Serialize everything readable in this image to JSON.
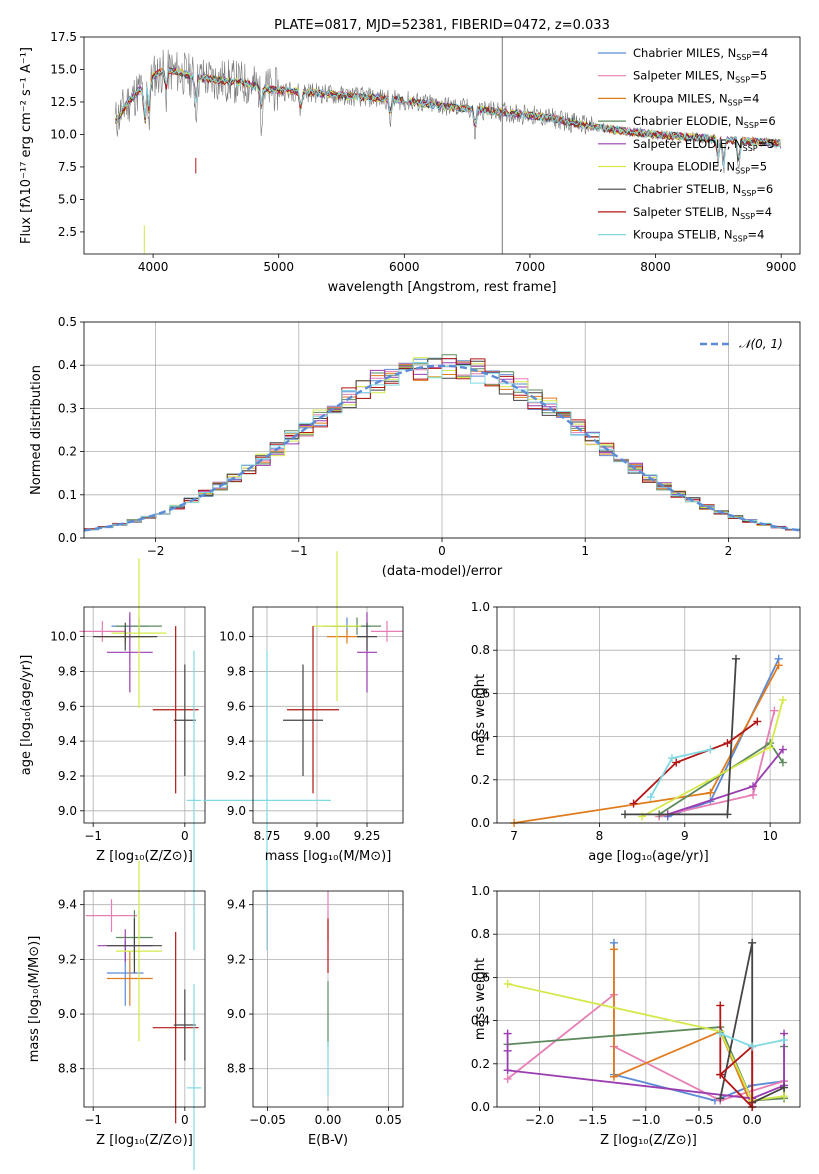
{
  "colors": {
    "chabrier_miles": "#5b8bd6",
    "salpeter_miles": "#e67fb5",
    "kroupa_miles": "#e07b1e",
    "chabrier_elodie": "#5d8a5d",
    "salpeter_elodie": "#9a3db0",
    "kroupa_elodie": "#d4e84a",
    "chabrier_stelib": "#454545",
    "salpeter_stelib": "#b21616",
    "kroupa_stelib": "#7fd9e2"
  },
  "chart_data": [
    {
      "id": "spectrum",
      "type": "line",
      "title": "PLATE=0817, MJD=52381, FIBERID=0472, z=0.033",
      "xlabel": "wavelength [Angstrom, rest frame]",
      "ylabel": "Flux [fλ10⁻¹⁷ erg cm⁻² s⁻¹ A⁻¹]",
      "xlim": [
        3450,
        9150
      ],
      "ylim": [
        0.8,
        17.5
      ],
      "xticks": [
        4000,
        5000,
        6000,
        7000,
        8000,
        9000
      ],
      "yticks": [
        2.5,
        5.0,
        7.5,
        10.0,
        12.5,
        15.0,
        17.5
      ],
      "legend_position": "top-right",
      "legend": [
        {
          "label": "Chabrier MILES, N",
          "sub": "SSP",
          "tail": "=4",
          "color": "#5b8bd6"
        },
        {
          "label": "Salpeter MILES, N",
          "sub": "SSP",
          "tail": "=5",
          "color": "#e67fb5"
        },
        {
          "label": "Kroupa MILES, N",
          "sub": "SSP",
          "tail": "=4",
          "color": "#e07b1e"
        },
        {
          "label": "Chabrier ELODIE, N",
          "sub": "SSP",
          "tail": "=6",
          "color": "#5d8a5d"
        },
        {
          "label": "Salpeter ELODIE, N",
          "sub": "SSP",
          "tail": "=5",
          "color": "#9a3db0"
        },
        {
          "label": "Kroupa ELODIE, N",
          "sub": "SSP",
          "tail": "=5",
          "color": "#d4e84a"
        },
        {
          "label": "Chabrier STELIB, N",
          "sub": "SSP",
          "tail": "=6",
          "color": "#454545"
        },
        {
          "label": "Salpeter STELIB, N",
          "sub": "SSP",
          "tail": "=4",
          "color": "#b21616"
        },
        {
          "label": "Kroupa STELIB, N",
          "sub": "SSP",
          "tail": "=4",
          "color": "#7fd9e2"
        }
      ],
      "continuum": {
        "x": [
          3700,
          3800,
          3900,
          4000,
          4100,
          4200,
          4300,
          4500,
          4700,
          4900,
          5000,
          5200,
          5500,
          5800,
          6000,
          6300,
          6600,
          6900,
          7200,
          7500,
          7800,
          8100,
          8400,
          8700,
          9000
        ],
        "y": [
          11.0,
          12.5,
          13.5,
          14.5,
          15.0,
          14.8,
          14.5,
          14.2,
          14.0,
          13.5,
          13.4,
          13.3,
          13.0,
          12.8,
          12.6,
          12.2,
          11.9,
          11.6,
          11.2,
          10.6,
          10.2,
          9.9,
          9.7,
          9.5,
          9.3
        ]
      }
    },
    {
      "id": "residuals",
      "type": "line",
      "xlabel": "(data-model)/error",
      "ylabel": "Normed distribution",
      "xlim": [
        -2.5,
        2.5
      ],
      "ylim": [
        0,
        0.5
      ],
      "xticks": [
        -2,
        -1,
        0,
        1,
        2
      ],
      "yticks": [
        0.0,
        0.1,
        0.2,
        0.3,
        0.4,
        0.5
      ],
      "legend_position": "top-right",
      "legend_label": "𝒩(0, 1)",
      "normal_curve": {
        "mean": 0,
        "sigma": 1,
        "color": "#5b8bd6",
        "style": "dashed"
      },
      "bin_width": 0.1
    },
    {
      "id": "age-vs-Z",
      "type": "scatter",
      "xlabel": "Z [log₁₀(Z/Z⊙)]",
      "ylabel": "age  [log₁₀(age/yr)]",
      "xlim": [
        -1.1,
        0.22
      ],
      "ylim": [
        8.93,
        10.17
      ],
      "xticks": [
        -1,
        0
      ],
      "yticks": [
        9.0,
        9.2,
        9.4,
        9.6,
        9.8,
        10.0
      ],
      "points": [
        {
          "x": -0.6,
          "y": 10.06,
          "xerr": 0.2,
          "yerr": 0.05,
          "color": "#5b8bd6"
        },
        {
          "x": -0.9,
          "y": 10.03,
          "xerr": 0.25,
          "yerr": 0.06,
          "color": "#e67fb5"
        },
        {
          "x": -0.65,
          "y": 10.0,
          "xerr": 0.3,
          "yerr": 0.04,
          "color": "#e07b1e"
        },
        {
          "x": -0.5,
          "y": 10.06,
          "xerr": 0.25,
          "yerr": 0.05,
          "color": "#5d8a5d"
        },
        {
          "x": -0.6,
          "y": 9.91,
          "xerr": 0.25,
          "yerr": 0.23,
          "color": "#9a3db0"
        },
        {
          "x": -0.5,
          "y": 10.02,
          "xerr": 0.3,
          "yerr": 0.43,
          "color": "#d4e84a"
        },
        {
          "x": -0.65,
          "y": 10.0,
          "xerr": 0.35,
          "yerr": 0.08,
          "color": "#454545"
        },
        {
          "x": -0.1,
          "y": 9.58,
          "xerr": 0.25,
          "yerr": 0.48,
          "color": "#b21616"
        },
        {
          "x": 0.0,
          "y": 9.52,
          "xerr": 0.12,
          "yerr": 0.32,
          "color": "#454545"
        },
        {
          "x": 0.1,
          "y": 9.06,
          "xerr": 0.08,
          "yerr": 0.86,
          "color": "#7fd9e2"
        }
      ]
    },
    {
      "id": "age-vs-mass",
      "type": "scatter",
      "xlabel": "mass [log₁₀(M/M⊙)]",
      "xlim": [
        8.68,
        9.43
      ],
      "ylim": [
        8.93,
        10.17
      ],
      "xticks": [
        8.75,
        9.0,
        9.25
      ],
      "yticks": [
        9.0,
        9.2,
        9.4,
        9.6,
        9.8,
        10.0
      ],
      "points": [
        {
          "x": 9.15,
          "y": 10.06,
          "xerr": 0.12,
          "yerr": 0.05,
          "color": "#5b8bd6"
        },
        {
          "x": 9.35,
          "y": 10.03,
          "xerr": 0.08,
          "yerr": 0.06,
          "color": "#e67fb5"
        },
        {
          "x": 9.15,
          "y": 10.0,
          "xerr": 0.1,
          "yerr": 0.04,
          "color": "#e07b1e"
        },
        {
          "x": 9.2,
          "y": 10.06,
          "xerr": 0.12,
          "yerr": 0.05,
          "color": "#5d8a5d"
        },
        {
          "x": 9.25,
          "y": 9.91,
          "xerr": 0.05,
          "yerr": 0.23,
          "color": "#9a3db0"
        },
        {
          "x": 9.1,
          "y": 10.06,
          "xerr": 0.12,
          "yerr": 0.43,
          "color": "#d4e84a"
        },
        {
          "x": 9.25,
          "y": 10.0,
          "xerr": 0.05,
          "yerr": 0.08,
          "color": "#454545"
        },
        {
          "x": 8.98,
          "y": 9.58,
          "xerr": 0.13,
          "yerr": 0.48,
          "color": "#b21616"
        },
        {
          "x": 8.93,
          "y": 9.52,
          "xerr": 0.1,
          "yerr": 0.32,
          "color": "#454545"
        },
        {
          "x": 8.75,
          "y": 9.06,
          "xerr": 0.32,
          "yerr": 0.86,
          "color": "#7fd9e2"
        }
      ]
    },
    {
      "id": "weight-vs-age",
      "type": "line",
      "xlabel": "age  [log₁₀(age/yr)]",
      "ylabel": "mass weight",
      "xlim": [
        6.8,
        10.35
      ],
      "ylim": [
        0,
        1.0
      ],
      "xticks": [
        7,
        8,
        9,
        10
      ],
      "yticks": [
        0.0,
        0.2,
        0.4,
        0.6,
        0.8,
        1.0
      ],
      "series": [
        {
          "color": "#5b8bd6",
          "x": [
            8.8,
            9.3,
            10.1
          ],
          "y": [
            0.03,
            0.1,
            0.76
          ]
        },
        {
          "color": "#e67fb5",
          "x": [
            8.7,
            9.8,
            10.05
          ],
          "y": [
            0.03,
            0.13,
            0.52
          ]
        },
        {
          "color": "#e07b1e",
          "x": [
            7.0,
            9.3,
            10.1
          ],
          "y": [
            0.0,
            0.14,
            0.73
          ]
        },
        {
          "color": "#5d8a5d",
          "x": [
            8.7,
            10.0,
            10.15
          ],
          "y": [
            0.04,
            0.37,
            0.28
          ]
        },
        {
          "color": "#9a3db0",
          "x": [
            8.8,
            9.8,
            10.15
          ],
          "y": [
            0.04,
            0.17,
            0.34
          ]
        },
        {
          "color": "#d4e84a",
          "x": [
            8.5,
            10.0,
            10.15
          ],
          "y": [
            0.03,
            0.35,
            0.57
          ]
        },
        {
          "color": "#454545",
          "x": [
            8.3,
            9.5,
            9.6
          ],
          "y": [
            0.04,
            0.04,
            0.76
          ]
        },
        {
          "color": "#b21616",
          "x": [
            8.4,
            8.9,
            9.5,
            9.85
          ],
          "y": [
            0.09,
            0.28,
            0.37,
            0.47
          ]
        },
        {
          "color": "#7fd9e2",
          "x": [
            8.6,
            8.85,
            9.3
          ],
          "y": [
            0.12,
            0.3,
            0.34
          ]
        }
      ]
    },
    {
      "id": "mass-vs-Z",
      "type": "scatter",
      "xlabel": "Z [log₁₀(Z/Z⊙)]",
      "ylabel": "mass [log₁₀(M/M⊙)]",
      "xlim": [
        -1.1,
        0.22
      ],
      "ylim": [
        8.66,
        9.45
      ],
      "xticks": [
        -1,
        0
      ],
      "yticks": [
        8.8,
        9.0,
        9.2,
        9.4
      ],
      "points": [
        {
          "x": -0.65,
          "y": 9.15,
          "xerr": 0.2,
          "yerr": 0.12,
          "color": "#5b8bd6"
        },
        {
          "x": -0.8,
          "y": 9.36,
          "xerr": 0.28,
          "yerr": 0.06,
          "color": "#e67fb5"
        },
        {
          "x": -0.6,
          "y": 9.13,
          "xerr": 0.25,
          "yerr": 0.1,
          "color": "#e07b1e"
        },
        {
          "x": -0.55,
          "y": 9.28,
          "xerr": 0.2,
          "yerr": 0.1,
          "color": "#5d8a5d"
        },
        {
          "x": -0.65,
          "y": 9.25,
          "xerr": 0.3,
          "yerr": 0.06,
          "color": "#9a3db0"
        },
        {
          "x": -0.5,
          "y": 9.23,
          "xerr": 0.25,
          "yerr": 0.33,
          "color": "#d4e84a"
        },
        {
          "x": -0.55,
          "y": 9.25,
          "xerr": 0.3,
          "yerr": 0.1,
          "color": "#454545"
        },
        {
          "x": -0.1,
          "y": 8.95,
          "xerr": 0.25,
          "yerr": 0.35,
          "color": "#b21616"
        },
        {
          "x": 0.0,
          "y": 8.96,
          "xerr": 0.12,
          "yerr": 0.13,
          "color": "#454545"
        },
        {
          "x": 0.1,
          "y": 8.73,
          "xerr": 0.08,
          "yerr": 0.38,
          "color": "#7fd9e2"
        }
      ]
    },
    {
      "id": "mass-vs-ebv",
      "type": "scatter",
      "xlabel": "E(B-V)",
      "xlim": [
        -0.062,
        0.062
      ],
      "ylim": [
        8.66,
        9.45
      ],
      "xticks": [
        -0.05,
        0.0,
        0.05
      ],
      "yticks": [
        8.8,
        9.0,
        9.2,
        9.4
      ],
      "points": [
        {
          "x": 0.0,
          "y": 9.36,
          "xerr": 0.0,
          "yerr": 0.09,
          "color": "#e67fb5"
        },
        {
          "x": 0.0,
          "y": 9.25,
          "xerr": 0.0,
          "yerr": 0.1,
          "color": "#b21616"
        },
        {
          "x": 0.0,
          "y": 9.0,
          "xerr": 0.0,
          "yerr": 0.12,
          "color": "#5d8a5d"
        },
        {
          "x": 0.0,
          "y": 8.8,
          "xerr": 0.0,
          "yerr": 0.1,
          "color": "#7fd9e2"
        }
      ]
    },
    {
      "id": "weight-vs-Z",
      "type": "line",
      "xlabel": "Z [log₁₀(Z/Z⊙)]",
      "ylabel": "mass weight",
      "xlim": [
        -2.4,
        0.45
      ],
      "ylim": [
        0,
        1.0
      ],
      "xticks": [
        -2.0,
        -1.5,
        -1.0,
        -0.5,
        0.0
      ],
      "yticks": [
        0.0,
        0.2,
        0.4,
        0.6,
        0.8,
        1.0
      ],
      "series": [
        {
          "color": "#5b8bd6",
          "x": [
            -1.3,
            -1.3,
            -0.35,
            0.0,
            0.3
          ],
          "y": [
            0.76,
            0.15,
            0.03,
            0.1,
            0.12
          ]
        },
        {
          "color": "#e67fb5",
          "x": [
            -2.3,
            -1.3,
            -1.3,
            -0.3,
            0.3
          ],
          "y": [
            0.13,
            0.52,
            0.28,
            0.03,
            0.12
          ]
        },
        {
          "color": "#e07b1e",
          "x": [
            -1.3,
            -1.3,
            -0.3,
            0.0
          ],
          "y": [
            0.73,
            0.14,
            0.35,
            0.0
          ]
        },
        {
          "color": "#5d8a5d",
          "x": [
            -2.3,
            -0.3,
            0.0,
            0.3,
            0.3
          ],
          "y": [
            0.29,
            0.37,
            0.03,
            0.04,
            0.28
          ]
        },
        {
          "color": "#9a3db0",
          "x": [
            -2.3,
            -2.3,
            -2.3,
            0.0,
            0.3,
            0.3
          ],
          "y": [
            0.34,
            0.26,
            0.17,
            0.04,
            0.1,
            0.34
          ]
        },
        {
          "color": "#d4e84a",
          "x": [
            -2.3,
            -0.3,
            0.0,
            0.3
          ],
          "y": [
            0.57,
            0.35,
            0.03,
            0.05
          ]
        },
        {
          "color": "#454545",
          "x": [
            -0.3,
            0.0,
            0.0,
            0.3
          ],
          "y": [
            0.04,
            0.76,
            0.02,
            0.09
          ]
        },
        {
          "color": "#b21616",
          "x": [
            -0.3,
            -0.3,
            0.0,
            0.0,
            -0.3
          ],
          "y": [
            0.47,
            0.15,
            0.0,
            0.28,
            0.15
          ]
        },
        {
          "color": "#7fd9e2",
          "x": [
            -0.3,
            0.0,
            0.3
          ],
          "y": [
            0.34,
            0.28,
            0.31
          ]
        }
      ]
    }
  ]
}
